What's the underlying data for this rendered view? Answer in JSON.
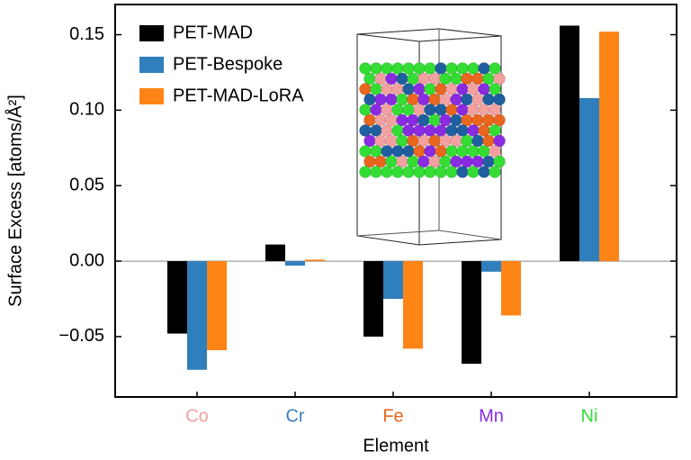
{
  "chart_data": {
    "type": "bar",
    "xlabel": "Element",
    "ylabel": "Surface Excess [atoms/Å²]",
    "categories": [
      "Co",
      "Cr",
      "Fe",
      "Mn",
      "Ni"
    ],
    "category_colors": [
      "#f2a0a0",
      "#3d7ec0",
      "#e8661e",
      "#8a2be2",
      "#33dd33"
    ],
    "series": [
      {
        "name": "PET-MAD",
        "color": "#000000",
        "values": [
          -0.048,
          0.011,
          -0.05,
          -0.068,
          0.156
        ]
      },
      {
        "name": "PET-Bespoke",
        "color": "#2f7fbd",
        "values": [
          -0.072,
          -0.003,
          -0.025,
          -0.007,
          0.108
        ]
      },
      {
        "name": "PET-MAD-LoRA",
        "color": "#ff8416",
        "values": [
          -0.059,
          0.001,
          -0.058,
          -0.036,
          0.152
        ]
      }
    ],
    "ylim": [
      -0.09,
      0.17
    ],
    "yticks": [
      {
        "value": -0.05,
        "label": "−0.05"
      },
      {
        "value": 0,
        "label": "0.00"
      },
      {
        "value": 0.05,
        "label": "0.05"
      },
      {
        "value": 0.1,
        "label": "0.10"
      },
      {
        "value": 0.15,
        "label": "0.15"
      }
    ],
    "legend": "upper left",
    "zero_line": true
  }
}
